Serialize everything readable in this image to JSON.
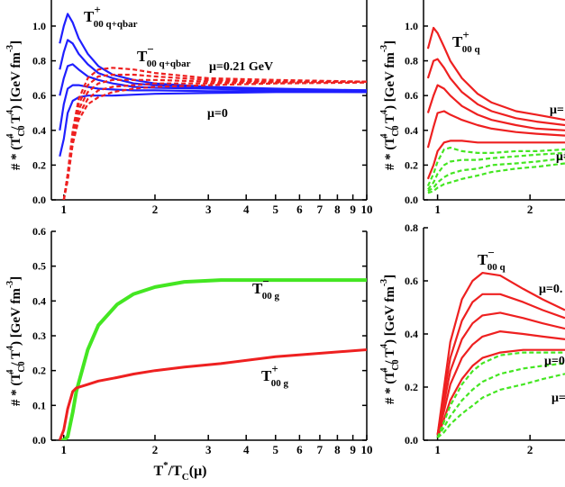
{
  "chart_data": [
    {
      "type": "line",
      "xscale": "log",
      "xlim": [
        0.91,
        10
      ],
      "ylim": [
        0,
        1.15
      ],
      "xticks": [
        1,
        2,
        3,
        4,
        5,
        6,
        7,
        8,
        9,
        10
      ],
      "yticks": [
        {
          "value": 0,
          "label": "0.0"
        },
        0.2,
        0.4,
        0.6,
        0.8,
        {
          "value": 1,
          "label": "1.0"
        }
      ],
      "ylabel": [
        "# * (T",
        "C0",
        "4",
        " / T",
        "4",
        ") [GeV fm",
        "-3",
        "]"
      ],
      "x": [
        0.97,
        1.0,
        1.03,
        1.07,
        1.12,
        1.2,
        1.3,
        1.45,
        1.7,
        2,
        3,
        5,
        10
      ],
      "series": [
        {
          "color": "#1f1fff",
          "dash": false,
          "values": [
            0.9,
            1.0,
            1.07,
            1.02,
            0.93,
            0.84,
            0.77,
            0.72,
            0.69,
            0.67,
            0.65,
            0.64,
            0.63
          ]
        },
        {
          "color": "#1f1fff",
          "dash": false,
          "values": [
            0.75,
            0.85,
            0.92,
            0.9,
            0.84,
            0.78,
            0.73,
            0.7,
            0.67,
            0.66,
            0.645,
            0.635,
            0.63
          ]
        },
        {
          "color": "#1f1fff",
          "dash": false,
          "values": [
            0.6,
            0.7,
            0.77,
            0.78,
            0.75,
            0.71,
            0.69,
            0.67,
            0.65,
            0.645,
            0.64,
            0.63,
            0.625
          ]
        },
        {
          "color": "#1f1fff",
          "dash": false,
          "values": [
            0.4,
            0.55,
            0.64,
            0.66,
            0.66,
            0.65,
            0.64,
            0.635,
            0.63,
            0.63,
            0.625,
            0.625,
            0.62
          ]
        },
        {
          "color": "#1f1fff",
          "dash": false,
          "values": [
            0.25,
            0.35,
            0.5,
            0.57,
            0.59,
            0.6,
            0.6,
            0.6,
            0.605,
            0.61,
            0.615,
            0.62,
            0.62
          ]
        },
        {
          "color": "#ee2020",
          "dash": true,
          "values": [
            null,
            0.0,
            0.15,
            0.4,
            0.58,
            0.7,
            0.75,
            0.76,
            0.75,
            0.73,
            0.7,
            0.69,
            0.68
          ]
        },
        {
          "color": "#ee2020",
          "dash": true,
          "values": [
            null,
            0.0,
            0.14,
            0.38,
            0.55,
            0.66,
            0.71,
            0.72,
            0.72,
            0.71,
            0.69,
            0.68,
            0.68
          ]
        },
        {
          "color": "#ee2020",
          "dash": true,
          "values": [
            null,
            0.0,
            0.13,
            0.36,
            0.52,
            0.62,
            0.67,
            0.69,
            0.69,
            0.69,
            0.68,
            0.68,
            0.68
          ]
        },
        {
          "color": "#ee2020",
          "dash": true,
          "values": [
            null,
            0.0,
            0.12,
            0.34,
            0.49,
            0.58,
            0.63,
            0.65,
            0.66,
            0.67,
            0.67,
            0.675,
            0.68
          ]
        },
        {
          "color": "#ee2020",
          "dash": true,
          "values": [
            null,
            0.0,
            0.11,
            0.32,
            0.46,
            0.55,
            0.59,
            0.62,
            0.64,
            0.65,
            0.66,
            0.67,
            0.675
          ]
        }
      ],
      "annotations": [
        {
          "text": "T",
          "sup": "+",
          "sub": "00 q+qbar"
        },
        {
          "text": "T",
          "sup": "−",
          "sub": "00 q+qbar"
        },
        {
          "text": "μ=0.21 GeV"
        },
        {
          "text": "μ=0"
        }
      ]
    },
    {
      "type": "line",
      "xscale": "log",
      "xlim": [
        0.9,
        2.6
      ],
      "ylim": [
        0,
        1.15
      ],
      "xticks": [
        1,
        2
      ],
      "yticks": [
        {
          "value": 0,
          "label": "0.0"
        },
        0.2,
        0.4,
        0.6,
        0.8,
        {
          "value": 1,
          "label": "1.0"
        }
      ],
      "ylabel": [
        "# * (T",
        "C0",
        "4",
        " / T",
        "4",
        ") [GeV fm",
        "-3",
        "]"
      ],
      "x": [
        0.93,
        0.97,
        1.0,
        1.05,
        1.1,
        1.2,
        1.35,
        1.5,
        1.8,
        2.1,
        2.6
      ],
      "series": [
        {
          "color": "#ee2020",
          "dash": false,
          "values": [
            0.87,
            0.99,
            0.96,
            0.88,
            0.8,
            0.7,
            0.61,
            0.56,
            0.51,
            0.49,
            0.46
          ]
        },
        {
          "color": "#ee2020",
          "dash": false,
          "values": [
            0.7,
            0.8,
            0.81,
            0.76,
            0.7,
            0.62,
            0.55,
            0.51,
            0.47,
            0.45,
            0.43
          ]
        },
        {
          "color": "#ee2020",
          "dash": false,
          "values": [
            0.5,
            0.6,
            0.66,
            0.64,
            0.6,
            0.54,
            0.49,
            0.46,
            0.43,
            0.41,
            0.4
          ]
        },
        {
          "color": "#ee2020",
          "dash": false,
          "values": [
            0.3,
            0.42,
            0.5,
            0.51,
            0.49,
            0.46,
            0.43,
            0.41,
            0.39,
            0.38,
            0.37
          ]
        },
        {
          "color": "#ee2020",
          "dash": false,
          "values": [
            0.12,
            0.2,
            0.28,
            0.33,
            0.34,
            0.34,
            0.33,
            0.33,
            0.33,
            0.33,
            0.33
          ]
        },
        {
          "color": "#44e622",
          "dash": true,
          "values": [
            0.08,
            0.15,
            0.22,
            0.29,
            0.3,
            0.28,
            0.27,
            0.27,
            0.28,
            0.28,
            0.29
          ]
        },
        {
          "color": "#44e622",
          "dash": true,
          "values": [
            0.06,
            0.1,
            0.15,
            0.2,
            0.22,
            0.23,
            0.23,
            0.24,
            0.25,
            0.26,
            0.27
          ]
        },
        {
          "color": "#44e622",
          "dash": true,
          "values": [
            0.05,
            0.07,
            0.1,
            0.13,
            0.15,
            0.17,
            0.18,
            0.2,
            0.21,
            0.22,
            0.24
          ]
        },
        {
          "color": "#44e622",
          "dash": true,
          "values": [
            0.04,
            0.05,
            0.07,
            0.09,
            0.1,
            0.12,
            0.14,
            0.16,
            0.18,
            0.19,
            0.21
          ]
        }
      ],
      "annotations": [
        {
          "text": "T",
          "sup": "+",
          "sub": "00 q"
        },
        {
          "text": "μ="
        },
        {
          "text": "μ="
        }
      ]
    },
    {
      "type": "line",
      "xscale": "log",
      "xlim": [
        0.91,
        10
      ],
      "ylim": [
        0,
        0.6
      ],
      "xticks": [
        1,
        2,
        3,
        4,
        5,
        6,
        7,
        8,
        9,
        10
      ],
      "yticks": [
        {
          "value": 0,
          "label": "0.0"
        },
        0.1,
        0.2,
        0.3,
        0.4,
        0.5,
        0.6
      ],
      "ylabel": [
        "# * (T",
        "C0",
        "4",
        " / T",
        "4",
        ") [GeV fm",
        "-3",
        "]"
      ],
      "xlabel": [
        "T",
        "*",
        "/T",
        "C",
        "(μ)"
      ],
      "x": [
        0.97,
        1.0,
        1.03,
        1.07,
        1.1,
        1.2,
        1.3,
        1.5,
        1.7,
        2,
        2.5,
        3.3,
        5,
        10
      ],
      "series": [
        {
          "color": "#44e622",
          "dash": false,
          "width": 4,
          "values": [
            0,
            0,
            0.01,
            0.08,
            0.14,
            0.26,
            0.33,
            0.39,
            0.42,
            0.44,
            0.455,
            0.46,
            0.46,
            0.46
          ]
        },
        {
          "color": "#ee2020",
          "dash": false,
          "width": 3,
          "values": [
            0,
            0.03,
            0.09,
            0.14,
            0.15,
            0.16,
            0.17,
            0.18,
            0.19,
            0.2,
            0.21,
            0.22,
            0.24,
            0.26
          ]
        }
      ],
      "annotations": [
        {
          "text": "T",
          "sup": "−",
          "sub": "00 g"
        },
        {
          "text": "T",
          "sup": "+",
          "sub": "00 g"
        }
      ]
    },
    {
      "type": "line",
      "xscale": "log",
      "xlim": [
        0.9,
        2.6
      ],
      "ylim": [
        0,
        0.8
      ],
      "xticks": [
        1,
        2
      ],
      "yticks": [
        {
          "value": 0,
          "label": "0.0"
        },
        0.2,
        0.4,
        0.6,
        0.8
      ],
      "ylabel": [
        "# * (T",
        "C0",
        "4",
        " / T",
        "4",
        ") [GeV fm",
        "-3",
        "]"
      ],
      "x": [
        1.0,
        1.05,
        1.1,
        1.2,
        1.3,
        1.4,
        1.6,
        1.9,
        2.2,
        2.6
      ],
      "series": [
        {
          "color": "#ee2020",
          "dash": false,
          "values": [
            0.02,
            0.2,
            0.37,
            0.53,
            0.6,
            0.63,
            0.62,
            0.57,
            0.53,
            0.49
          ]
        },
        {
          "color": "#ee2020",
          "dash": false,
          "values": [
            0.02,
            0.17,
            0.31,
            0.45,
            0.52,
            0.55,
            0.55,
            0.52,
            0.49,
            0.46
          ]
        },
        {
          "color": "#ee2020",
          "dash": false,
          "values": [
            0.02,
            0.14,
            0.26,
            0.38,
            0.44,
            0.47,
            0.48,
            0.46,
            0.44,
            0.42
          ]
        },
        {
          "color": "#ee2020",
          "dash": false,
          "values": [
            0.02,
            0.11,
            0.21,
            0.31,
            0.36,
            0.39,
            0.41,
            0.4,
            0.39,
            0.38
          ]
        },
        {
          "color": "#ee2020",
          "dash": false,
          "values": [
            0.01,
            0.08,
            0.15,
            0.23,
            0.28,
            0.31,
            0.33,
            0.34,
            0.34,
            0.34
          ]
        },
        {
          "color": "#44e622",
          "dash": true,
          "values": [
            0.01,
            0.07,
            0.13,
            0.21,
            0.26,
            0.29,
            0.32,
            0.33,
            0.33,
            0.33
          ]
        },
        {
          "color": "#44e622",
          "dash": true,
          "values": [
            0.01,
            0.05,
            0.09,
            0.15,
            0.19,
            0.22,
            0.25,
            0.27,
            0.28,
            0.29
          ]
        },
        {
          "color": "#44e622",
          "dash": true,
          "values": [
            0.01,
            0.03,
            0.06,
            0.1,
            0.13,
            0.16,
            0.19,
            0.21,
            0.23,
            0.25
          ]
        }
      ],
      "annotations": [
        {
          "text": "T",
          "sup": "−",
          "sub": "00 q"
        },
        {
          "text": "μ=0."
        },
        {
          "text": "μ=0"
        },
        {
          "text": "μ="
        }
      ]
    }
  ]
}
